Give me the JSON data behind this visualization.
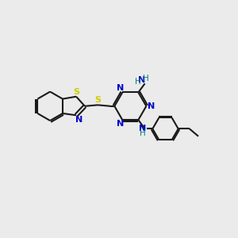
{
  "background_color": "#ebebeb",
  "bond_color": "#1a1a1a",
  "nitrogen_color": "#0000cc",
  "sulfur_color": "#cccc00",
  "nh_color": "#008080",
  "line_width": 1.5,
  "figsize": [
    3.0,
    3.0
  ],
  "dpi": 100,
  "xlim": [
    0,
    10
  ],
  "ylim": [
    0,
    10
  ]
}
